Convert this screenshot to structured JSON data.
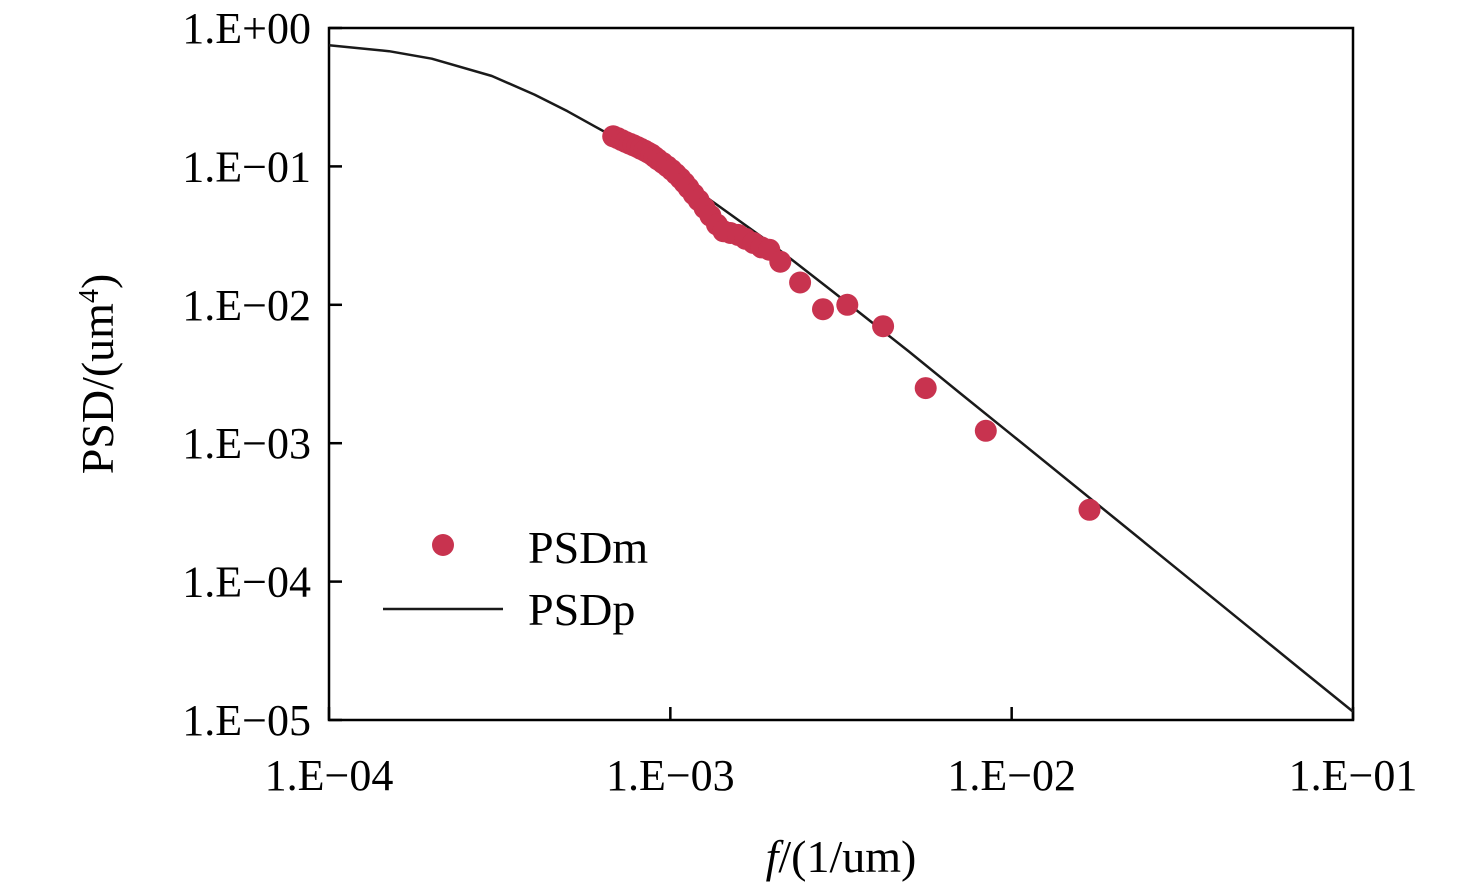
{
  "chart_data": {
    "type": "scatter",
    "xlabel_italic": "f",
    "xlabel_rest": "/(1/um)",
    "ylabel_main": "PSD/(um",
    "ylabel_sup": "4",
    "ylabel_close": ")",
    "x_scale": "log",
    "y_scale": "log",
    "xlim": [
      0.0001,
      0.1
    ],
    "ylim": [
      1e-05,
      1
    ],
    "x_ticks": [
      {
        "value": 0.0001,
        "label": "1.E−04"
      },
      {
        "value": 0.001,
        "label": "1.E−03"
      },
      {
        "value": 0.01,
        "label": "1.E−02"
      },
      {
        "value": 0.1,
        "label": "1.E−01"
      }
    ],
    "y_ticks": [
      {
        "value": 1,
        "label": "1.E+00"
      },
      {
        "value": 0.1,
        "label": "1.E−01"
      },
      {
        "value": 0.01,
        "label": "1.E−02"
      },
      {
        "value": 0.001,
        "label": "1.E−03"
      },
      {
        "value": 0.0001,
        "label": "1.E−04"
      },
      {
        "value": 1e-05,
        "label": "1.E−05"
      }
    ],
    "grid": false,
    "legend_position": "lower-left",
    "series": [
      {
        "name": "PSDm",
        "kind": "markers",
        "color": "#c8334f",
        "points": [
          [
            0.00068,
            0.165
          ],
          [
            0.0007,
            0.16
          ],
          [
            0.00072,
            0.155
          ],
          [
            0.00074,
            0.15
          ],
          [
            0.00076,
            0.146
          ],
          [
            0.00078,
            0.142
          ],
          [
            0.0008,
            0.138
          ],
          [
            0.00082,
            0.134
          ],
          [
            0.00084,
            0.13
          ],
          [
            0.00086,
            0.126
          ],
          [
            0.00088,
            0.122
          ],
          [
            0.0009,
            0.117
          ],
          [
            0.00092,
            0.112
          ],
          [
            0.00095,
            0.106
          ],
          [
            0.00098,
            0.1
          ],
          [
            0.00101,
            0.094
          ],
          [
            0.00104,
            0.088
          ],
          [
            0.00107,
            0.082
          ],
          [
            0.0011,
            0.076
          ],
          [
            0.00113,
            0.07
          ],
          [
            0.00117,
            0.063
          ],
          [
            0.00121,
            0.057
          ],
          [
            0.00126,
            0.05
          ],
          [
            0.00131,
            0.044
          ],
          [
            0.00137,
            0.038
          ],
          [
            0.00143,
            0.034
          ],
          [
            0.0015,
            0.033
          ],
          [
            0.00158,
            0.032
          ],
          [
            0.00166,
            0.03
          ],
          [
            0.00175,
            0.028
          ],
          [
            0.00185,
            0.026
          ],
          [
            0.00195,
            0.025
          ],
          [
            0.0021,
            0.0205
          ],
          [
            0.0024,
            0.0145
          ],
          [
            0.0028,
            0.0093
          ],
          [
            0.0033,
            0.01
          ],
          [
            0.0042,
            0.007
          ],
          [
            0.0056,
            0.0025
          ],
          [
            0.0084,
            0.00123
          ],
          [
            0.0169,
            0.00033
          ]
        ]
      },
      {
        "name": "PSDp",
        "kind": "line",
        "color": "#1a1a1a",
        "points": [
          [
            0.0001,
            0.75
          ],
          [
            0.00015,
            0.68
          ],
          [
            0.0002,
            0.6
          ],
          [
            0.0003,
            0.45
          ],
          [
            0.0004,
            0.33
          ],
          [
            0.0005,
            0.25
          ],
          [
            0.0006,
            0.195
          ],
          [
            0.0007,
            0.158
          ],
          [
            0.0008,
            0.13
          ],
          [
            0.001,
            0.092
          ],
          [
            0.0015,
            0.045
          ],
          [
            0.002,
            0.027
          ],
          [
            0.003,
            0.0124
          ],
          [
            0.005,
            0.0046
          ],
          [
            0.007,
            0.00234
          ],
          [
            0.01,
            0.00115
          ],
          [
            0.02,
            0.000288
          ],
          [
            0.03,
            0.000128
          ],
          [
            0.05,
            4.6e-05
          ],
          [
            0.07,
            2.34e-05
          ],
          [
            0.1,
            1.15e-05
          ]
        ]
      }
    ]
  }
}
